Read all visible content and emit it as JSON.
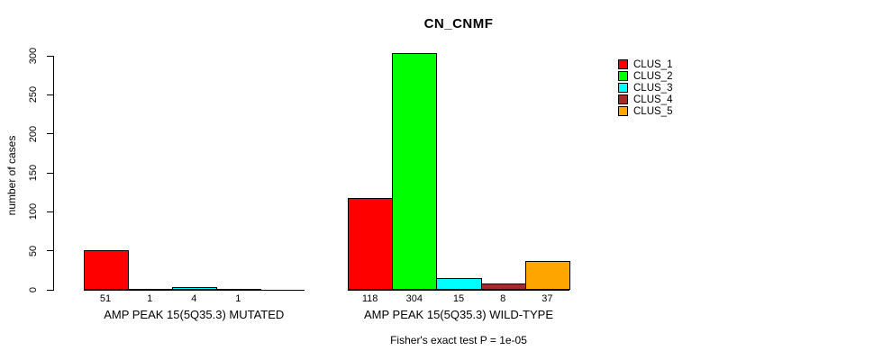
{
  "chart_data": {
    "type": "bar",
    "title": "CN_CNMF",
    "ylabel": "number of cases",
    "ylim": [
      0,
      300
    ],
    "yticks": [
      0,
      50,
      100,
      150,
      200,
      250,
      300
    ],
    "grid": false,
    "legend_position": "right",
    "legend_entries": [
      {
        "label": "CLUS_1",
        "color": "#FF0000"
      },
      {
        "label": "CLUS_2",
        "color": "#00FF00"
      },
      {
        "label": "CLUS_3",
        "color": "#00FFFF"
      },
      {
        "label": "CLUS_4",
        "color": "#A52A2A"
      },
      {
        "label": "CLUS_5",
        "color": "#FFA500"
      }
    ],
    "groups": [
      {
        "label": "AMP PEAK 15(5Q35.3) MUTATED",
        "values": [
          51,
          1,
          4,
          1,
          0
        ],
        "value_labels": [
          "51",
          "1",
          "4",
          "1",
          ""
        ]
      },
      {
        "label": "AMP PEAK 15(5Q35.3) WILD-TYPE",
        "values": [
          118,
          304,
          15,
          8,
          37
        ],
        "value_labels": [
          "118",
          "304",
          "15",
          "8",
          "37"
        ]
      }
    ],
    "footer": "Fisher's exact test P = 1e-05"
  }
}
